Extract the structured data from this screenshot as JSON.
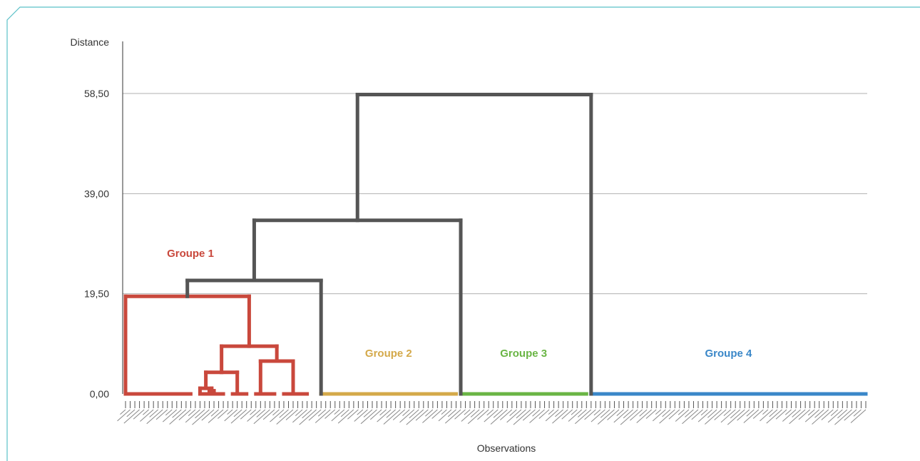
{
  "chart_data": {
    "type": "dendrogram",
    "ylabel": "Distance",
    "xlabel": "Observations",
    "yticks": [
      "0,00",
      "19,50",
      "39,00",
      "58,50"
    ],
    "ytick_values": [
      0,
      19.5,
      39,
      58.5
    ],
    "ylim": [
      0,
      58.5
    ],
    "grid": true,
    "observation_count": 160,
    "groups": [
      {
        "name": "Groupe 1",
        "color": "#c9483c",
        "observations": 42
      },
      {
        "name": "Groupe 2",
        "color": "#d4a94a",
        "observations": 30
      },
      {
        "name": "Groupe 3",
        "color": "#6ab545",
        "observations": 28
      },
      {
        "name": "Groupe 4",
        "color": "#3a87c8",
        "observations": 60
      }
    ],
    "link_color": "#555555",
    "merges": [
      {
        "between": [
          "Groupe 1",
          "Groupe 2"
        ],
        "distance": 22.1
      },
      {
        "between": [
          "Groupe 1+2",
          "Groupe 3"
        ],
        "distance": 33.8
      },
      {
        "between": [
          "Groupe 1+2+3",
          "Groupe 4"
        ],
        "distance": 58.3
      }
    ],
    "group1_internal_merges": [
      {
        "distance": 19.0
      },
      {
        "distance": 9.3
      },
      {
        "distance": 6.4
      },
      {
        "distance": 4.2
      },
      {
        "distance": 1.1
      },
      {
        "distance": 0.6
      }
    ]
  }
}
